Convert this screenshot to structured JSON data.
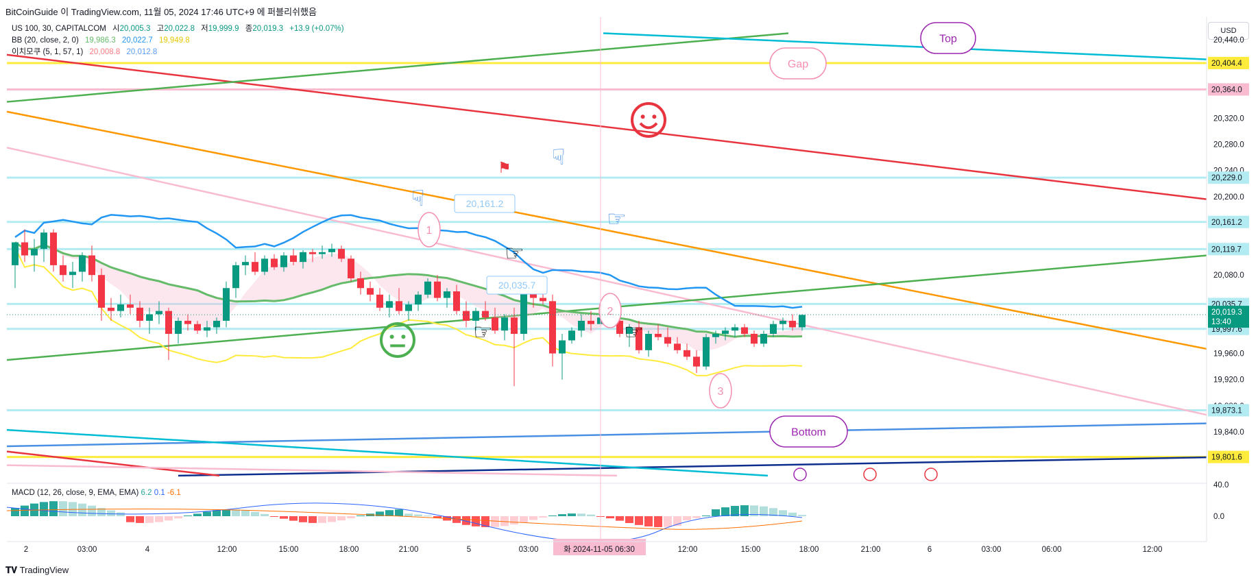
{
  "header": {
    "credit": "BitCoinGuide 이 TradingView.com, 11월 05, 2024 17:46 UTC+9 에 퍼블리쉬했음"
  },
  "legend": {
    "symbol": "US 100, 30, CAPITALCOM",
    "open_label": "시",
    "open": "20,005.3",
    "high_label": "고",
    "high": "20,022.8",
    "low_label": "저",
    "low": "19,999.9",
    "close_label": "종",
    "close": "20,019.3",
    "change": "+13.9 (+0.07%)",
    "bb_label": "BB (20, close, 2, 0)",
    "bb_basis": "19,986.3",
    "bb_upper": "20,022.7",
    "bb_lower": "19,949.8",
    "ichimoku_label": "이치모쿠 (5, 1, 57, 1)",
    "ichimoku_a": "20,008.8",
    "ichimoku_b": "20,012.8",
    "macd_label": "MACD (12, 26, close, 9, EMA, EMA)",
    "macd_hist": "6.2",
    "macd_line": "0.1",
    "macd_signal": "-6.1"
  },
  "currency": "USD",
  "footer": "TradingView",
  "colors": {
    "up": "#089981",
    "down": "#f23645",
    "bb_basis": "#66bb6a",
    "bb_upper": "#2196f3",
    "bb_lower": "#ffeb3b",
    "red_line": "#e8343f",
    "orange_line": "#ff9800",
    "pink_line": "#f8bbd0",
    "green_line": "#4caf50",
    "teal_line": "#00bcd4",
    "yellow_line": "#ffeb3b",
    "navy_line": "#0d2e8c",
    "blue_line": "#4a90e2",
    "hline": "#b2ebf2"
  },
  "chart_data": {
    "type": "candlestick",
    "y_axis_ticks": [
      "20,440.0",
      "20,320.0",
      "20,280.0",
      "20,240.0",
      "20,200.0",
      "20,080.0",
      "19,960.0",
      "19,920.0",
      "19,880.0",
      "19,840.0"
    ],
    "x_axis_ticks": [
      "2",
      "03:00",
      "4",
      "12:00",
      "15:00",
      "18:00",
      "21:00",
      "5",
      "03:00",
      "12:00",
      "15:00",
      "18:00",
      "21:00",
      "6",
      "03:00",
      "06:00",
      "12:00"
    ],
    "crosshair_x_label": "화 2024-11-05  06:30",
    "price_labels": [
      {
        "value": "20,404.4",
        "bg": "#ffeb3b",
        "fg": "#131722"
      },
      {
        "value": "20,364.0",
        "bg": "#f8bbd0",
        "fg": "#131722"
      },
      {
        "value": "20,229.0",
        "bg": "#b2ebf2",
        "fg": "#131722"
      },
      {
        "value": "20,161.2",
        "bg": "#b2ebf2",
        "fg": "#131722"
      },
      {
        "value": "20,119.7",
        "bg": "#b2ebf2",
        "fg": "#131722"
      },
      {
        "value": "20,035.7",
        "bg": "#b2ebf2",
        "fg": "#131722"
      },
      {
        "value": "19,997.6",
        "bg": "#b2ebf2",
        "fg": "#131722"
      },
      {
        "value": "19,873.1",
        "bg": "#b2ebf2",
        "fg": "#131722"
      },
      {
        "value": "19,801.6",
        "bg": "#ffeb3b",
        "fg": "#131722"
      }
    ],
    "last_price": {
      "value": "20,019.3",
      "countdown": "13:40"
    },
    "horizontal_lines": [
      20404.4,
      20364.0,
      20229.0,
      20161.2,
      20119.7,
      20035.7,
      19997.6,
      19873.1,
      19801.6
    ],
    "candles": [
      [
        20095,
        20130,
        20060,
        20130
      ],
      [
        20130,
        20150,
        20100,
        20110
      ],
      [
        20110,
        20135,
        20085,
        20120
      ],
      [
        20120,
        20150,
        20100,
        20145
      ],
      [
        20145,
        20150,
        20085,
        20095
      ],
      [
        20095,
        20110,
        20070,
        20080
      ],
      [
        20080,
        20100,
        20060,
        20085
      ],
      [
        20085,
        20115,
        20070,
        20110
      ],
      [
        20110,
        20125,
        20070,
        20080
      ],
      [
        20080,
        20090,
        20010,
        20030
      ],
      [
        20030,
        20045,
        20010,
        20025
      ],
      [
        20025,
        20050,
        20015,
        20035
      ],
      [
        20035,
        20050,
        20020,
        20030
      ],
      [
        20030,
        20040,
        20000,
        20010
      ],
      [
        20010,
        20030,
        19990,
        20020
      ],
      [
        20020,
        20040,
        20005,
        20025
      ],
      [
        20025,
        20030,
        19950,
        19990
      ],
      [
        19990,
        20015,
        19975,
        20010
      ],
      [
        20010,
        20020,
        19995,
        20005
      ],
      [
        20005,
        20010,
        19990,
        19995
      ],
      [
        19995,
        20010,
        19985,
        20000
      ],
      [
        20000,
        20015,
        19990,
        20010
      ],
      [
        20010,
        20070,
        20000,
        20060
      ],
      [
        20060,
        20100,
        20045,
        20095
      ],
      [
        20095,
        20110,
        20080,
        20100
      ],
      [
        20100,
        20115,
        20080,
        20085
      ],
      [
        20085,
        20110,
        20080,
        20105
      ],
      [
        20105,
        20112,
        20088,
        20092
      ],
      [
        20092,
        20115,
        20085,
        20110
      ],
      [
        20110,
        20120,
        20095,
        20100
      ],
      [
        20100,
        20118,
        20090,
        20115
      ],
      [
        20115,
        20120,
        20100,
        20112
      ],
      [
        20112,
        20125,
        20105,
        20115
      ],
      [
        20115,
        20128,
        20108,
        20120
      ],
      [
        20120,
        20125,
        20100,
        20105
      ],
      [
        20105,
        20110,
        20070,
        20075
      ],
      [
        20075,
        20085,
        20050,
        20060
      ],
      [
        20060,
        20070,
        20040,
        20050
      ],
      [
        20050,
        20060,
        20025,
        20030
      ],
      [
        20030,
        20050,
        20015,
        20040
      ],
      [
        20040,
        20060,
        20020,
        20025
      ],
      [
        20025,
        20040,
        20010,
        20035
      ],
      [
        20035,
        20055,
        20025,
        20050
      ],
      [
        20050,
        20075,
        20045,
        20070
      ],
      [
        20070,
        20080,
        20040,
        20045
      ],
      [
        20045,
        20060,
        20030,
        20055
      ],
      [
        20055,
        20065,
        20020,
        20025
      ],
      [
        20025,
        20040,
        20000,
        20010
      ],
      [
        20010,
        20030,
        19995,
        20025
      ],
      [
        20025,
        20040,
        20010,
        20015
      ],
      [
        20015,
        20030,
        19990,
        19995
      ],
      [
        19995,
        20020,
        19980,
        20015
      ],
      [
        20015,
        20030,
        19910,
        19990
      ],
      [
        19990,
        20060,
        19980,
        20055
      ],
      [
        20055,
        20075,
        20030,
        20045
      ],
      [
        20045,
        20060,
        20035,
        20040
      ],
      [
        20040,
        20050,
        19940,
        19960
      ],
      [
        19960,
        19990,
        19920,
        19980
      ],
      [
        19980,
        20000,
        19975,
        19995
      ],
      [
        19995,
        20020,
        19985,
        20010
      ],
      [
        20010,
        20025,
        19995,
        20005
      ],
      [
        20005,
        20020,
        19990,
        20015
      ],
      [
        20015,
        20025,
        20000,
        20010
      ],
      [
        20010,
        20020,
        19985,
        19990
      ],
      [
        19990,
        20005,
        19970,
        20000
      ],
      [
        20000,
        20010,
        19960,
        19965
      ],
      [
        19965,
        19995,
        19955,
        19990
      ],
      [
        19990,
        20005,
        19980,
        19985
      ],
      [
        19985,
        20000,
        19970,
        19975
      ],
      [
        19975,
        19985,
        19960,
        19965
      ],
      [
        19965,
        19975,
        19950,
        19955
      ],
      [
        19955,
        19965,
        19930,
        19940
      ],
      [
        19940,
        19990,
        19935,
        19985
      ],
      [
        19985,
        19995,
        19975,
        19990
      ],
      [
        19990,
        20000,
        19980,
        19995
      ],
      [
        19995,
        20005,
        19985,
        20000
      ],
      [
        20000,
        20005,
        19985,
        19990
      ],
      [
        19990,
        19995,
        19970,
        19975
      ],
      [
        19975,
        19995,
        19970,
        19990
      ],
      [
        19990,
        20010,
        19985,
        20005
      ],
      [
        20005,
        20015,
        19995,
        20010
      ],
      [
        20010,
        20020,
        19995,
        20000
      ],
      [
        20000,
        20020,
        19995,
        20019
      ]
    ],
    "annotations": [
      "Top",
      "Gap",
      "Bottom",
      "1",
      "2",
      "3",
      "20,161.2",
      "20,035.7"
    ]
  }
}
